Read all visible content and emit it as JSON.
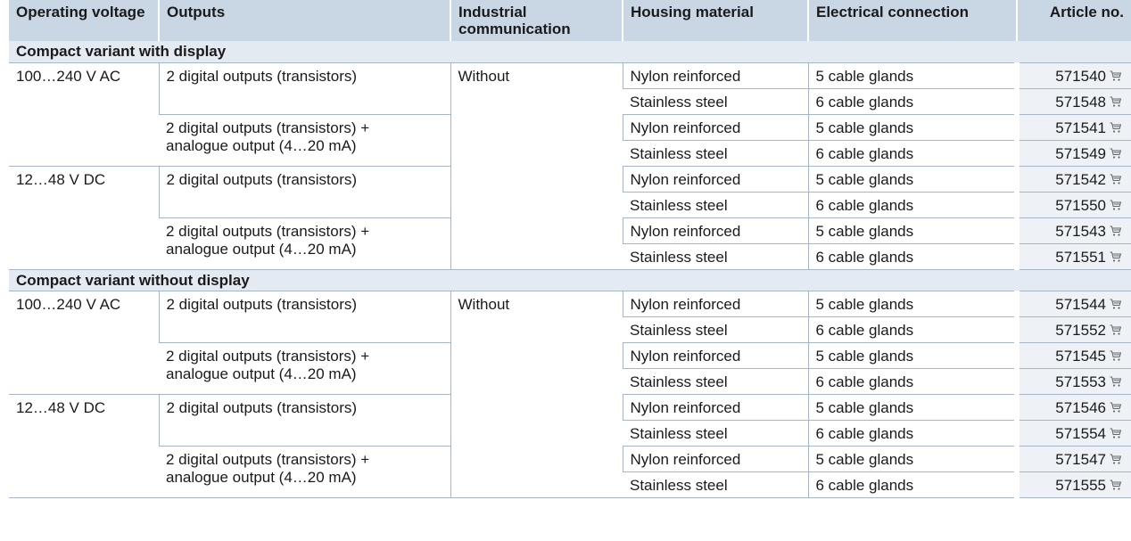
{
  "table": {
    "header": [
      "Operating voltage",
      "Outputs",
      "Industrial communication",
      "Housing material",
      "Electrical connection",
      "Article no."
    ],
    "sections": [
      {
        "title": "Compact variant with display",
        "communication": "Without",
        "groups": [
          {
            "voltage": "100…240 V AC",
            "outputs": [
              {
                "label": "2 digital outputs (transistors)",
                "variants": [
                  {
                    "housing": "Nylon reinforced",
                    "connection": "5 cable glands",
                    "article": "571540"
                  },
                  {
                    "housing": "Stainless steel",
                    "connection": "6 cable glands",
                    "article": "571548"
                  }
                ]
              },
              {
                "label": "2 digital outputs (transistors) +\nanalogue output (4…20 mA)",
                "variants": [
                  {
                    "housing": "Nylon reinforced",
                    "connection": "5 cable glands",
                    "article": "571541"
                  },
                  {
                    "housing": "Stainless steel",
                    "connection": "6 cable glands",
                    "article": "571549"
                  }
                ]
              }
            ]
          },
          {
            "voltage": "12…48 V DC",
            "outputs": [
              {
                "label": "2 digital outputs (transistors)",
                "variants": [
                  {
                    "housing": "Nylon reinforced",
                    "connection": "5 cable glands",
                    "article": "571542"
                  },
                  {
                    "housing": "Stainless steel",
                    "connection": "6 cable glands",
                    "article": "571550"
                  }
                ]
              },
              {
                "label": "2 digital outputs (transistors) +\nanalogue output (4…20 mA)",
                "variants": [
                  {
                    "housing": "Nylon reinforced",
                    "connection": "5 cable glands",
                    "article": "571543"
                  },
                  {
                    "housing": "Stainless steel",
                    "connection": "6 cable glands",
                    "article": "571551"
                  }
                ]
              }
            ]
          }
        ]
      },
      {
        "title": "Compact variant without display",
        "communication": "Without",
        "groups": [
          {
            "voltage": "100…240 V AC",
            "outputs": [
              {
                "label": "2 digital outputs (transistors)",
                "variants": [
                  {
                    "housing": "Nylon reinforced",
                    "connection": "5 cable glands",
                    "article": "571544"
                  },
                  {
                    "housing": "Stainless steel",
                    "connection": "6 cable glands",
                    "article": "571552"
                  }
                ]
              },
              {
                "label": "2 digital outputs (transistors) +\nanalogue output (4…20 mA)",
                "variants": [
                  {
                    "housing": "Nylon reinforced",
                    "connection": "5 cable glands",
                    "article": "571545"
                  },
                  {
                    "housing": "Stainless steel",
                    "connection": "6 cable glands",
                    "article": "571553"
                  }
                ]
              }
            ]
          },
          {
            "voltage": "12…48 V DC",
            "outputs": [
              {
                "label": "2 digital outputs (transistors)",
                "variants": [
                  {
                    "housing": "Nylon reinforced",
                    "connection": "5 cable glands",
                    "article": "571546"
                  },
                  {
                    "housing": "Stainless steel",
                    "connection": "6 cable glands",
                    "article": "571554"
                  }
                ]
              },
              {
                "label": "2 digital outputs (transistors) +\nanalogue output (4…20 mA)",
                "variants": [
                  {
                    "housing": "Nylon reinforced",
                    "connection": "5 cable glands",
                    "article": "571547"
                  },
                  {
                    "housing": "Stainless steel",
                    "connection": "6 cable glands",
                    "article": "571555"
                  }
                ]
              }
            ]
          }
        ]
      }
    ]
  }
}
